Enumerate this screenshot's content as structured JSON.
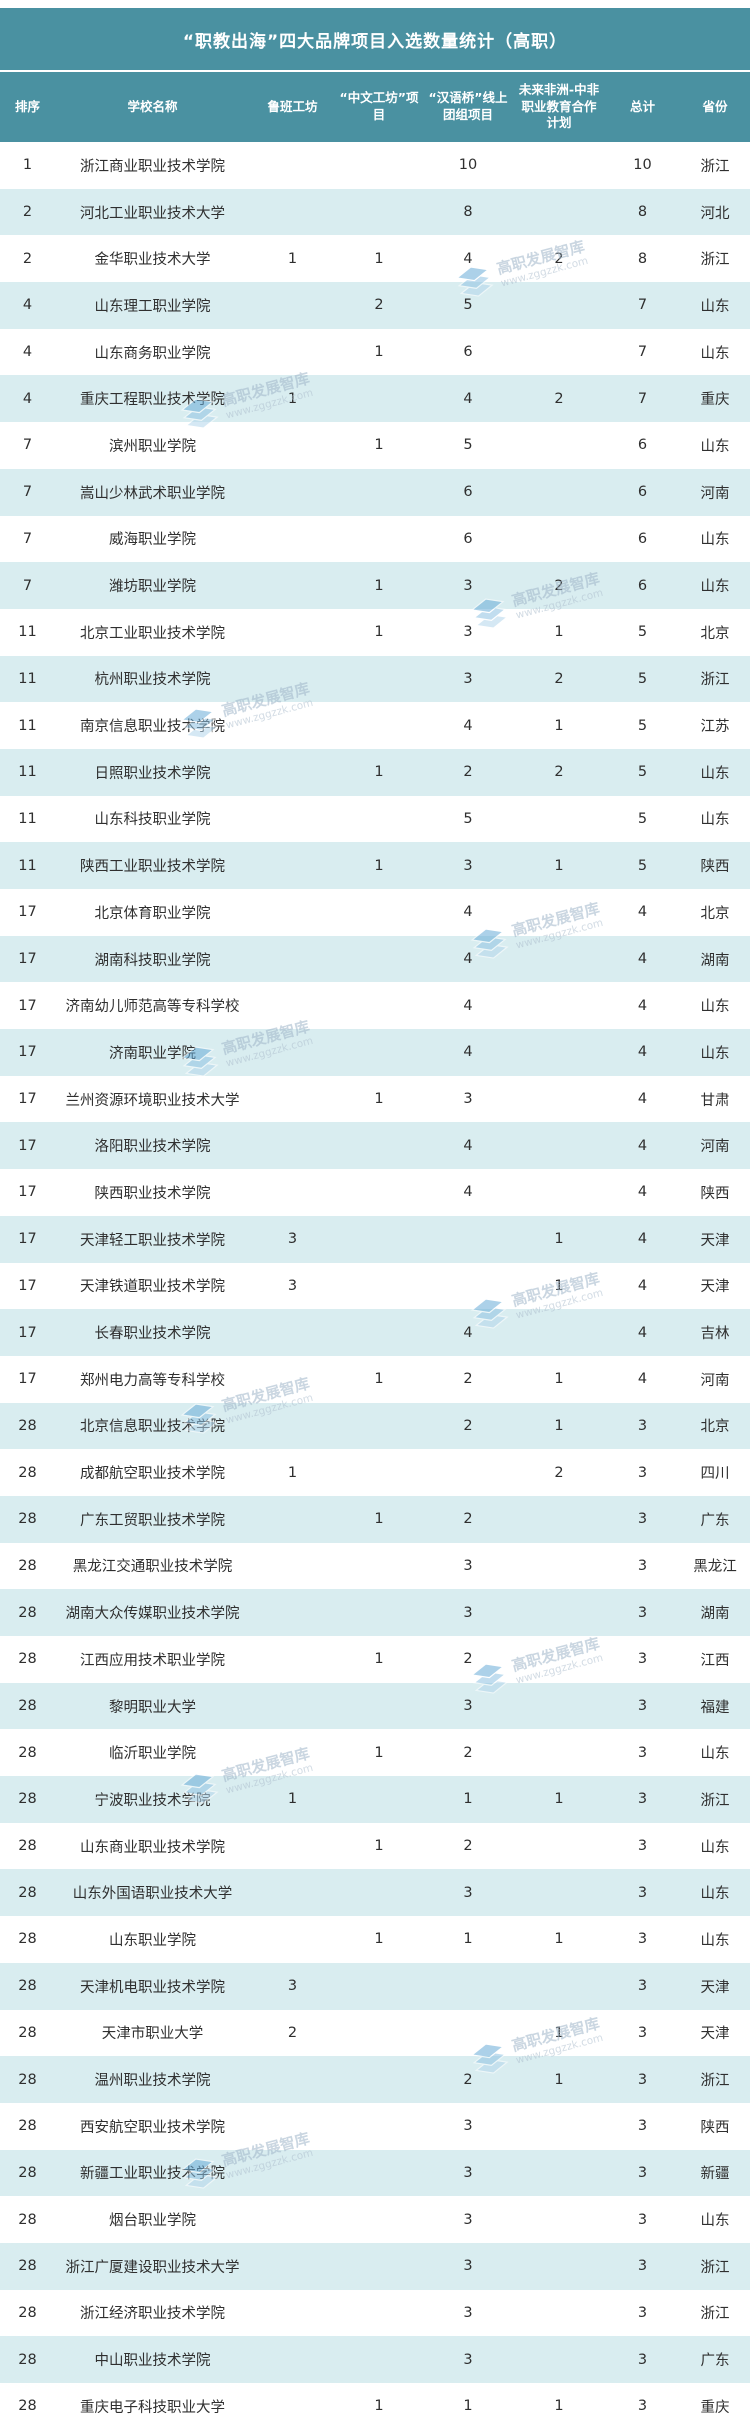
{
  "chart_data": {
    "type": "table",
    "title": "“职教出海”四大品牌项目入选数量统计（高职）",
    "columns": [
      "排序",
      "学校名称",
      "鲁班工坊",
      "“中文工坊”项目",
      "“汉语桥”线上团组项目",
      "未来非洲-中非职业教育合作计划",
      "总计",
      "省份"
    ],
    "rows": [
      [
        "1",
        "浙江商业职业技术学院",
        "",
        "",
        "10",
        "",
        "10",
        "浙江"
      ],
      [
        "2",
        "河北工业职业技术大学",
        "",
        "",
        "8",
        "",
        "8",
        "河北"
      ],
      [
        "2",
        "金华职业技术大学",
        "1",
        "1",
        "4",
        "2",
        "8",
        "浙江"
      ],
      [
        "4",
        "山东理工职业学院",
        "",
        "2",
        "5",
        "",
        "7",
        "山东"
      ],
      [
        "4",
        "山东商务职业学院",
        "",
        "1",
        "6",
        "",
        "7",
        "山东"
      ],
      [
        "4",
        "重庆工程职业技术学院",
        "1",
        "",
        "4",
        "2",
        "7",
        "重庆"
      ],
      [
        "7",
        "滨州职业学院",
        "",
        "1",
        "5",
        "",
        "6",
        "山东"
      ],
      [
        "7",
        "嵩山少林武术职业学院",
        "",
        "",
        "6",
        "",
        "6",
        "河南"
      ],
      [
        "7",
        "威海职业学院",
        "",
        "",
        "6",
        "",
        "6",
        "山东"
      ],
      [
        "7",
        "潍坊职业学院",
        "",
        "1",
        "3",
        "2",
        "6",
        "山东"
      ],
      [
        "11",
        "北京工业职业技术学院",
        "",
        "1",
        "3",
        "1",
        "5",
        "北京"
      ],
      [
        "11",
        "杭州职业技术学院",
        "",
        "",
        "3",
        "2",
        "5",
        "浙江"
      ],
      [
        "11",
        "南京信息职业技术学院",
        "",
        "",
        "4",
        "1",
        "5",
        "江苏"
      ],
      [
        "11",
        "日照职业技术学院",
        "",
        "1",
        "2",
        "2",
        "5",
        "山东"
      ],
      [
        "11",
        "山东科技职业学院",
        "",
        "",
        "5",
        "",
        "5",
        "山东"
      ],
      [
        "11",
        "陕西工业职业技术学院",
        "",
        "1",
        "3",
        "1",
        "5",
        "陕西"
      ],
      [
        "17",
        "北京体育职业学院",
        "",
        "",
        "4",
        "",
        "4",
        "北京"
      ],
      [
        "17",
        "湖南科技职业学院",
        "",
        "",
        "4",
        "",
        "4",
        "湖南"
      ],
      [
        "17",
        "济南幼儿师范高等专科学校",
        "",
        "",
        "4",
        "",
        "4",
        "山东"
      ],
      [
        "17",
        "济南职业学院",
        "",
        "",
        "4",
        "",
        "4",
        "山东"
      ],
      [
        "17",
        "兰州资源环境职业技术大学",
        "",
        "1",
        "3",
        "",
        "4",
        "甘肃"
      ],
      [
        "17",
        "洛阳职业技术学院",
        "",
        "",
        "4",
        "",
        "4",
        "河南"
      ],
      [
        "17",
        "陕西职业技术学院",
        "",
        "",
        "4",
        "",
        "4",
        "陕西"
      ],
      [
        "17",
        "天津轻工职业技术学院",
        "3",
        "",
        "",
        "1",
        "4",
        "天津"
      ],
      [
        "17",
        "天津铁道职业技术学院",
        "3",
        "",
        "",
        "1",
        "4",
        "天津"
      ],
      [
        "17",
        "长春职业技术学院",
        "",
        "",
        "4",
        "",
        "4",
        "吉林"
      ],
      [
        "17",
        "郑州电力高等专科学校",
        "",
        "1",
        "2",
        "1",
        "4",
        "河南"
      ],
      [
        "28",
        "北京信息职业技术学院",
        "",
        "",
        "2",
        "1",
        "3",
        "北京"
      ],
      [
        "28",
        "成都航空职业技术学院",
        "1",
        "",
        "",
        "2",
        "3",
        "四川"
      ],
      [
        "28",
        "广东工贸职业技术学院",
        "",
        "1",
        "2",
        "",
        "3",
        "广东"
      ],
      [
        "28",
        "黑龙江交通职业技术学院",
        "",
        "",
        "3",
        "",
        "3",
        "黑龙江"
      ],
      [
        "28",
        "湖南大众传媒职业技术学院",
        "",
        "",
        "3",
        "",
        "3",
        "湖南"
      ],
      [
        "28",
        "江西应用技术职业学院",
        "",
        "1",
        "2",
        "",
        "3",
        "江西"
      ],
      [
        "28",
        "黎明职业大学",
        "",
        "",
        "3",
        "",
        "3",
        "福建"
      ],
      [
        "28",
        "临沂职业学院",
        "",
        "1",
        "2",
        "",
        "3",
        "山东"
      ],
      [
        "28",
        "宁波职业技术学院",
        "1",
        "",
        "1",
        "1",
        "3",
        "浙江"
      ],
      [
        "28",
        "山东商业职业技术学院",
        "",
        "1",
        "2",
        "",
        "3",
        "山东"
      ],
      [
        "28",
        "山东外国语职业技术大学",
        "",
        "",
        "3",
        "",
        "3",
        "山东"
      ],
      [
        "28",
        "山东职业学院",
        "",
        "1",
        "1",
        "1",
        "3",
        "山东"
      ],
      [
        "28",
        "天津机电职业技术学院",
        "3",
        "",
        "",
        "",
        "3",
        "天津"
      ],
      [
        "28",
        "天津市职业大学",
        "2",
        "",
        "",
        "1",
        "3",
        "天津"
      ],
      [
        "28",
        "温州职业技术学院",
        "",
        "",
        "2",
        "1",
        "3",
        "浙江"
      ],
      [
        "28",
        "西安航空职业技术学院",
        "",
        "",
        "3",
        "",
        "3",
        "陕西"
      ],
      [
        "28",
        "新疆工业职业技术学院",
        "",
        "",
        "3",
        "",
        "3",
        "新疆"
      ],
      [
        "28",
        "烟台职业学院",
        "",
        "",
        "3",
        "",
        "3",
        "山东"
      ],
      [
        "28",
        "浙江广厦建设职业技术大学",
        "",
        "",
        "3",
        "",
        "3",
        "浙江"
      ],
      [
        "28",
        "浙江经济职业技术学院",
        "",
        "",
        "3",
        "",
        "3",
        "浙江"
      ],
      [
        "28",
        "中山职业技术学院",
        "",
        "",
        "3",
        "",
        "3",
        "广东"
      ],
      [
        "28",
        "重庆电子科技职业大学",
        "",
        "1",
        "1",
        "1",
        "3",
        "重庆"
      ]
    ],
    "layout": {
      "header_background": "#4a91a1",
      "row_alt_background": "#d9edf0",
      "row_background": "#ffffff",
      "text_color": "#2f2f2f"
    }
  },
  "watermark": {
    "name": "高职发展智库",
    "url": "www.zggzzk.com"
  }
}
